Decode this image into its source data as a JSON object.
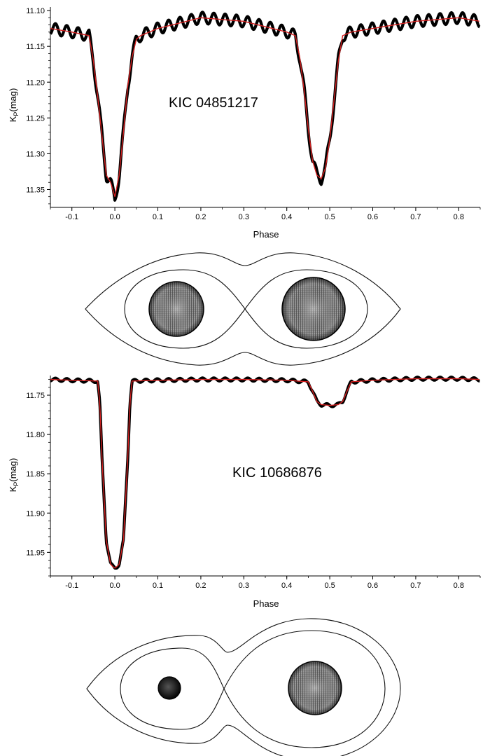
{
  "chart_data": [
    {
      "type": "line",
      "annotation": "KIC 04851217",
      "xlabel": "Phase",
      "ylabel_main": "K",
      "ylabel_sub": "P",
      "ylabel_unit": "(mag)",
      "xlim": [
        -0.15,
        0.85
      ],
      "ylim": [
        11.375,
        11.095
      ],
      "y_inverted": true,
      "grid": false,
      "xticks": [
        -0.1,
        0.0,
        0.1,
        0.2,
        0.3,
        0.4,
        0.5,
        0.6,
        0.7,
        0.8
      ],
      "xtick_labels": [
        "-0.1",
        "0.0",
        "0.1",
        "0.2",
        "0.3",
        "0.4",
        "0.5",
        "0.6",
        "0.7",
        "0.8"
      ],
      "yticks": [
        11.1,
        11.15,
        11.2,
        11.25,
        11.3,
        11.35
      ],
      "ytick_labels": [
        "11.10",
        "11.15",
        "11.20",
        "11.25",
        "11.30",
        "11.35"
      ],
      "series": [
        {
          "role": "observed",
          "color": "#000000",
          "x": [
            -0.15,
            -0.1,
            -0.06,
            -0.05,
            -0.04,
            -0.03,
            -0.02,
            -0.01,
            0.0,
            0.01,
            0.02,
            0.03,
            0.04,
            0.05,
            0.06,
            0.1,
            0.2,
            0.3,
            0.4,
            0.42,
            0.43,
            0.44,
            0.45,
            0.46,
            0.47,
            0.48,
            0.49,
            0.5,
            0.51,
            0.52,
            0.53,
            0.55,
            0.6,
            0.7,
            0.8,
            0.85
          ],
          "y": [
            11.125,
            11.13,
            11.135,
            11.17,
            11.22,
            11.275,
            11.33,
            11.34,
            11.365,
            11.33,
            11.27,
            11.205,
            11.165,
            11.14,
            11.135,
            11.125,
            11.11,
            11.115,
            11.13,
            11.135,
            11.165,
            11.21,
            11.265,
            11.31,
            11.33,
            11.335,
            11.32,
            11.28,
            11.225,
            11.17,
            11.135,
            11.13,
            11.125,
            11.115,
            11.11,
            11.115
          ],
          "oscillation_amplitude": 0.008
        },
        {
          "role": "model",
          "color": "#d62020",
          "x": [
            -0.15,
            -0.1,
            -0.06,
            -0.05,
            -0.04,
            -0.03,
            -0.02,
            -0.01,
            0.0,
            0.01,
            0.02,
            0.03,
            0.04,
            0.05,
            0.06,
            0.1,
            0.2,
            0.3,
            0.4,
            0.42,
            0.43,
            0.44,
            0.45,
            0.46,
            0.47,
            0.48,
            0.49,
            0.5,
            0.51,
            0.52,
            0.53,
            0.55,
            0.6,
            0.7,
            0.8,
            0.85
          ],
          "y": [
            11.125,
            11.13,
            11.135,
            11.17,
            11.22,
            11.275,
            11.33,
            11.34,
            11.36,
            11.33,
            11.27,
            11.205,
            11.165,
            11.14,
            11.135,
            11.125,
            11.11,
            11.115,
            11.13,
            11.135,
            11.165,
            11.21,
            11.265,
            11.31,
            11.33,
            11.335,
            11.32,
            11.28,
            11.225,
            11.17,
            11.135,
            11.13,
            11.125,
            11.115,
            11.11,
            11.115
          ]
        }
      ]
    },
    {
      "type": "line",
      "annotation": "KIC 10686876",
      "xlabel": "Phase",
      "ylabel_main": "K",
      "ylabel_sub": "P",
      "ylabel_unit": "(mag)",
      "xlim": [
        -0.15,
        0.85
      ],
      "ylim": [
        11.98,
        11.725
      ],
      "y_inverted": true,
      "grid": false,
      "xticks": [
        -0.1,
        0.0,
        0.1,
        0.2,
        0.3,
        0.4,
        0.5,
        0.6,
        0.7,
        0.8
      ],
      "xtick_labels": [
        "-0.1",
        "0.0",
        "0.1",
        "0.2",
        "0.3",
        "0.4",
        "0.5",
        "0.6",
        "0.7",
        "0.8"
      ],
      "yticks": [
        11.75,
        11.8,
        11.85,
        11.9,
        11.95
      ],
      "ytick_labels": [
        "11.75",
        "11.80",
        "11.85",
        "11.90",
        "11.95"
      ],
      "series": [
        {
          "role": "observed",
          "color": "#000000",
          "x": [
            -0.15,
            -0.1,
            -0.04,
            -0.035,
            -0.03,
            -0.02,
            -0.01,
            -0.005,
            0.0,
            0.005,
            0.01,
            0.02,
            0.03,
            0.035,
            0.04,
            0.1,
            0.2,
            0.3,
            0.4,
            0.45,
            0.46,
            0.47,
            0.48,
            0.5,
            0.52,
            0.53,
            0.54,
            0.55,
            0.6,
            0.7,
            0.8,
            0.85
          ],
          "y": [
            11.73,
            11.731,
            11.732,
            11.76,
            11.83,
            11.935,
            11.965,
            11.968,
            11.97,
            11.968,
            11.965,
            11.935,
            11.83,
            11.76,
            11.732,
            11.731,
            11.73,
            11.73,
            11.731,
            11.733,
            11.745,
            11.758,
            11.762,
            11.763,
            11.762,
            11.758,
            11.745,
            11.733,
            11.731,
            11.729,
            11.729,
            11.73
          ],
          "oscillation_amplitude": 0.002
        },
        {
          "role": "model",
          "color": "#d62020",
          "x": [
            -0.15,
            -0.1,
            -0.04,
            -0.035,
            -0.03,
            -0.02,
            -0.01,
            -0.005,
            0.0,
            0.005,
            0.01,
            0.02,
            0.03,
            0.035,
            0.04,
            0.1,
            0.2,
            0.3,
            0.4,
            0.45,
            0.46,
            0.47,
            0.48,
            0.5,
            0.52,
            0.53,
            0.54,
            0.55,
            0.6,
            0.7,
            0.8,
            0.85
          ],
          "y": [
            11.73,
            11.731,
            11.732,
            11.76,
            11.83,
            11.935,
            11.965,
            11.968,
            11.97,
            11.968,
            11.965,
            11.935,
            11.83,
            11.76,
            11.732,
            11.731,
            11.73,
            11.73,
            11.731,
            11.733,
            11.745,
            11.758,
            11.762,
            11.763,
            11.762,
            11.758,
            11.745,
            11.733,
            11.731,
            11.729,
            11.729,
            11.73
          ]
        }
      ]
    }
  ],
  "roche_diagrams": [
    {
      "label": "",
      "stars": [
        "large-mesh-sphere",
        "large-mesh-sphere"
      ],
      "mass_ratio": 1.0
    },
    {
      "label": "",
      "stars": [
        "small-dark-sphere",
        "large-mesh-sphere"
      ],
      "mass_ratio": 1.7
    }
  ],
  "colors": {
    "observed": "#000000",
    "model": "#d62020",
    "axes": "#000000"
  }
}
